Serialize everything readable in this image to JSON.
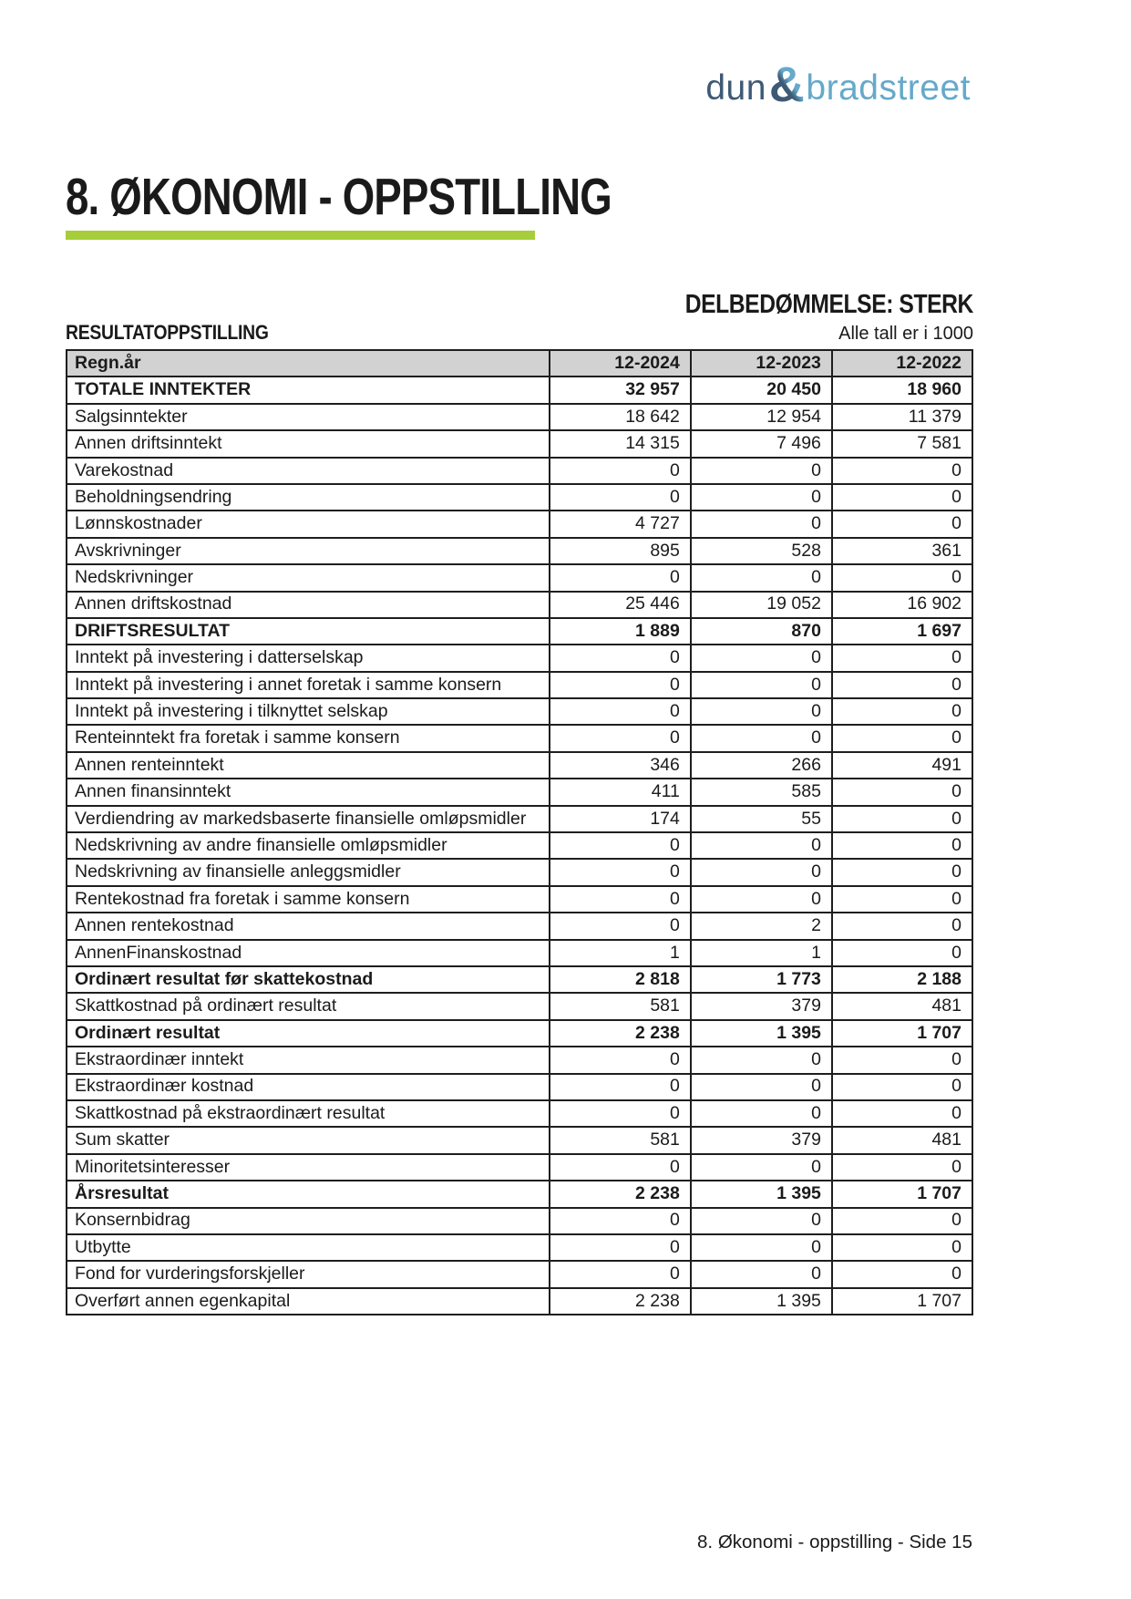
{
  "colors": {
    "accent_green": "#a5ce3a",
    "logo_navy": "#3d5a75",
    "logo_blue": "#66a9ca",
    "header_gray": "#d2d2d2"
  },
  "logo": {
    "part1": "dun",
    "ampersand": "&",
    "part2": "bradstreet"
  },
  "header": {
    "title": "8. ØKONOMI - OPPSTILLING",
    "assessment": "DELBEDØMMELSE: STERK",
    "section_label": "RESULTATOPPSTILLING",
    "units_note": "Alle tall er i 1000"
  },
  "footer": {
    "text": "8. Økonomi - oppstilling - Side 15"
  },
  "table": {
    "headers": [
      "Regn.år",
      "12-2024",
      "12-2023",
      "12-2022"
    ],
    "rows": [
      {
        "label": "TOTALE INNTEKTER",
        "values": [
          "32 957",
          "20 450",
          "18 960"
        ],
        "bold": true
      },
      {
        "label": "Salgsinntekter",
        "values": [
          "18 642",
          "12 954",
          "11 379"
        ],
        "bold": false
      },
      {
        "label": "Annen driftsinntekt",
        "values": [
          "14 315",
          "7 496",
          "7 581"
        ],
        "bold": false
      },
      {
        "label": "Varekostnad",
        "values": [
          "0",
          "0",
          "0"
        ],
        "bold": false
      },
      {
        "label": "Beholdningsendring",
        "values": [
          "0",
          "0",
          "0"
        ],
        "bold": false
      },
      {
        "label": "Lønnskostnader",
        "values": [
          "4 727",
          "0",
          "0"
        ],
        "bold": false
      },
      {
        "label": "Avskrivninger",
        "values": [
          "895",
          "528",
          "361"
        ],
        "bold": false
      },
      {
        "label": "Nedskrivninger",
        "values": [
          "0",
          "0",
          "0"
        ],
        "bold": false
      },
      {
        "label": "Annen driftskostnad",
        "values": [
          "25 446",
          "19 052",
          "16 902"
        ],
        "bold": false
      },
      {
        "label": "DRIFTSRESULTAT",
        "values": [
          "1 889",
          "870",
          "1 697"
        ],
        "bold": true
      },
      {
        "label": "Inntekt på investering i datterselskap",
        "values": [
          "0",
          "0",
          "0"
        ],
        "bold": false
      },
      {
        "label": "Inntekt på investering i annet foretak i samme konsern",
        "values": [
          "0",
          "0",
          "0"
        ],
        "bold": false
      },
      {
        "label": "Inntekt på investering i tilknyttet selskap",
        "values": [
          "0",
          "0",
          "0"
        ],
        "bold": false
      },
      {
        "label": "Renteinntekt fra foretak i samme konsern",
        "values": [
          "0",
          "0",
          "0"
        ],
        "bold": false
      },
      {
        "label": "Annen renteinntekt",
        "values": [
          "346",
          "266",
          "491"
        ],
        "bold": false
      },
      {
        "label": "Annen finansinntekt",
        "values": [
          "411",
          "585",
          "0"
        ],
        "bold": false
      },
      {
        "label": "Verdiendring av markedsbaserte finansielle omløpsmidler",
        "values": [
          "174",
          "55",
          "0"
        ],
        "bold": false
      },
      {
        "label": "Nedskrivning av andre finansielle omløpsmidler",
        "values": [
          "0",
          "0",
          "0"
        ],
        "bold": false
      },
      {
        "label": "Nedskrivning av finansielle anleggsmidler",
        "values": [
          "0",
          "0",
          "0"
        ],
        "bold": false
      },
      {
        "label": "Rentekostnad fra foretak i samme konsern",
        "values": [
          "0",
          "0",
          "0"
        ],
        "bold": false
      },
      {
        "label": "Annen rentekostnad",
        "values": [
          "0",
          "2",
          "0"
        ],
        "bold": false
      },
      {
        "label": "AnnenFinanskostnad",
        "values": [
          "1",
          "1",
          "0"
        ],
        "bold": false
      },
      {
        "label": "Ordinært resultat før skattekostnad",
        "values": [
          "2 818",
          "1 773",
          "2 188"
        ],
        "bold": true
      },
      {
        "label": "Skattkostnad på ordinært resultat",
        "values": [
          "581",
          "379",
          "481"
        ],
        "bold": false
      },
      {
        "label": "Ordinært resultat",
        "values": [
          "2 238",
          "1 395",
          "1 707"
        ],
        "bold": true
      },
      {
        "label": "Ekstraordinær inntekt",
        "values": [
          "0",
          "0",
          "0"
        ],
        "bold": false
      },
      {
        "label": "Ekstraordinær kostnad",
        "values": [
          "0",
          "0",
          "0"
        ],
        "bold": false
      },
      {
        "label": "Skattkostnad på ekstraordinært resultat",
        "values": [
          "0",
          "0",
          "0"
        ],
        "bold": false
      },
      {
        "label": "Sum skatter",
        "values": [
          "581",
          "379",
          "481"
        ],
        "bold": false
      },
      {
        "label": "Minoritetsinteresser",
        "values": [
          "0",
          "0",
          "0"
        ],
        "bold": false
      },
      {
        "label": "Årsresultat",
        "values": [
          "2 238",
          "1 395",
          "1 707"
        ],
        "bold": true
      },
      {
        "label": "Konsernbidrag",
        "values": [
          "0",
          "0",
          "0"
        ],
        "bold": false
      },
      {
        "label": "Utbytte",
        "values": [
          "0",
          "0",
          "0"
        ],
        "bold": false
      },
      {
        "label": "Fond for vurderingsforskjeller",
        "values": [
          "0",
          "0",
          "0"
        ],
        "bold": false
      },
      {
        "label": "Overført annen egenkapital",
        "values": [
          "2 238",
          "1 395",
          "1 707"
        ],
        "bold": false
      }
    ]
  }
}
